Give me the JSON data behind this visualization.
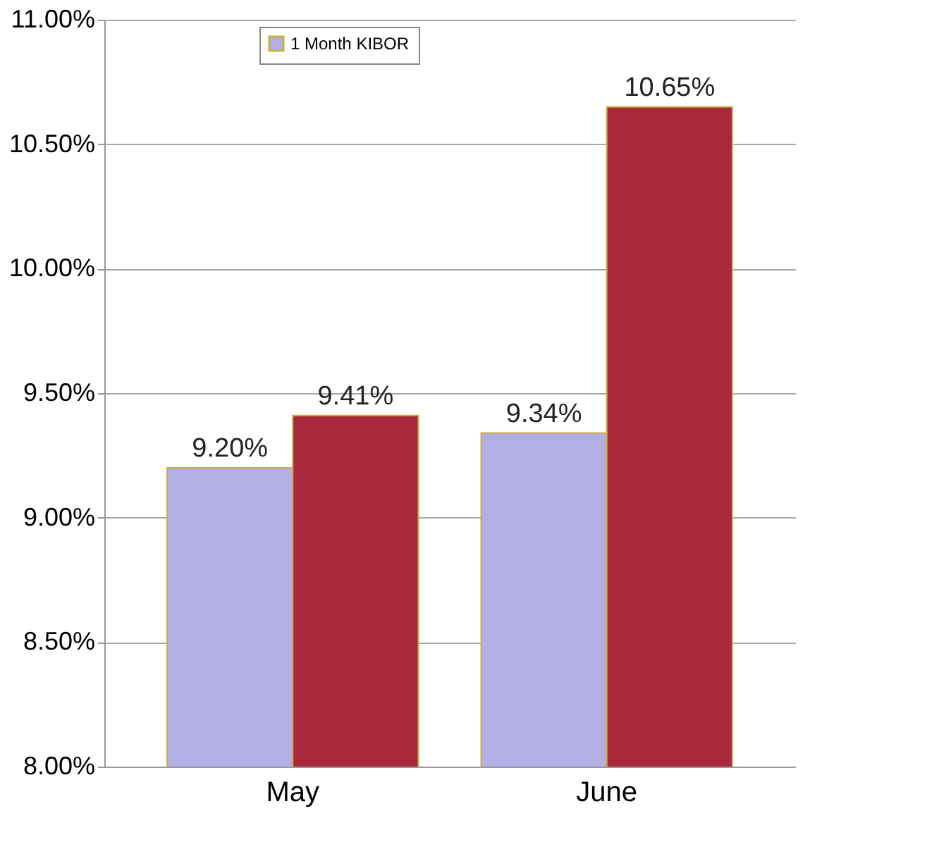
{
  "chart_data": {
    "type": "bar",
    "categories": [
      "May",
      "June"
    ],
    "series": [
      {
        "name": "1 Month KIBOR",
        "color": "#b3aee6",
        "values": [
          9.2,
          9.34
        ],
        "value_labels": [
          "9.20%",
          "9.34%"
        ]
      },
      {
        "color": "#a8283c",
        "values": [
          9.41,
          10.65
        ],
        "value_labels": [
          "9.41%",
          "10.65%"
        ]
      }
    ],
    "ylim": [
      8,
      11
    ],
    "yticks": [
      {
        "value": 8,
        "label": "8.00%"
      },
      {
        "value": 8.5,
        "label": "8.50%"
      },
      {
        "value": 9,
        "label": "9.00%"
      },
      {
        "value": 9.5,
        "label": "9.50%"
      },
      {
        "value": 10,
        "label": "10.00%"
      },
      {
        "value": 10.5,
        "label": "10.50%"
      },
      {
        "value": 11,
        "label": "11.00%"
      }
    ],
    "grid": "y",
    "legend": "top left"
  }
}
